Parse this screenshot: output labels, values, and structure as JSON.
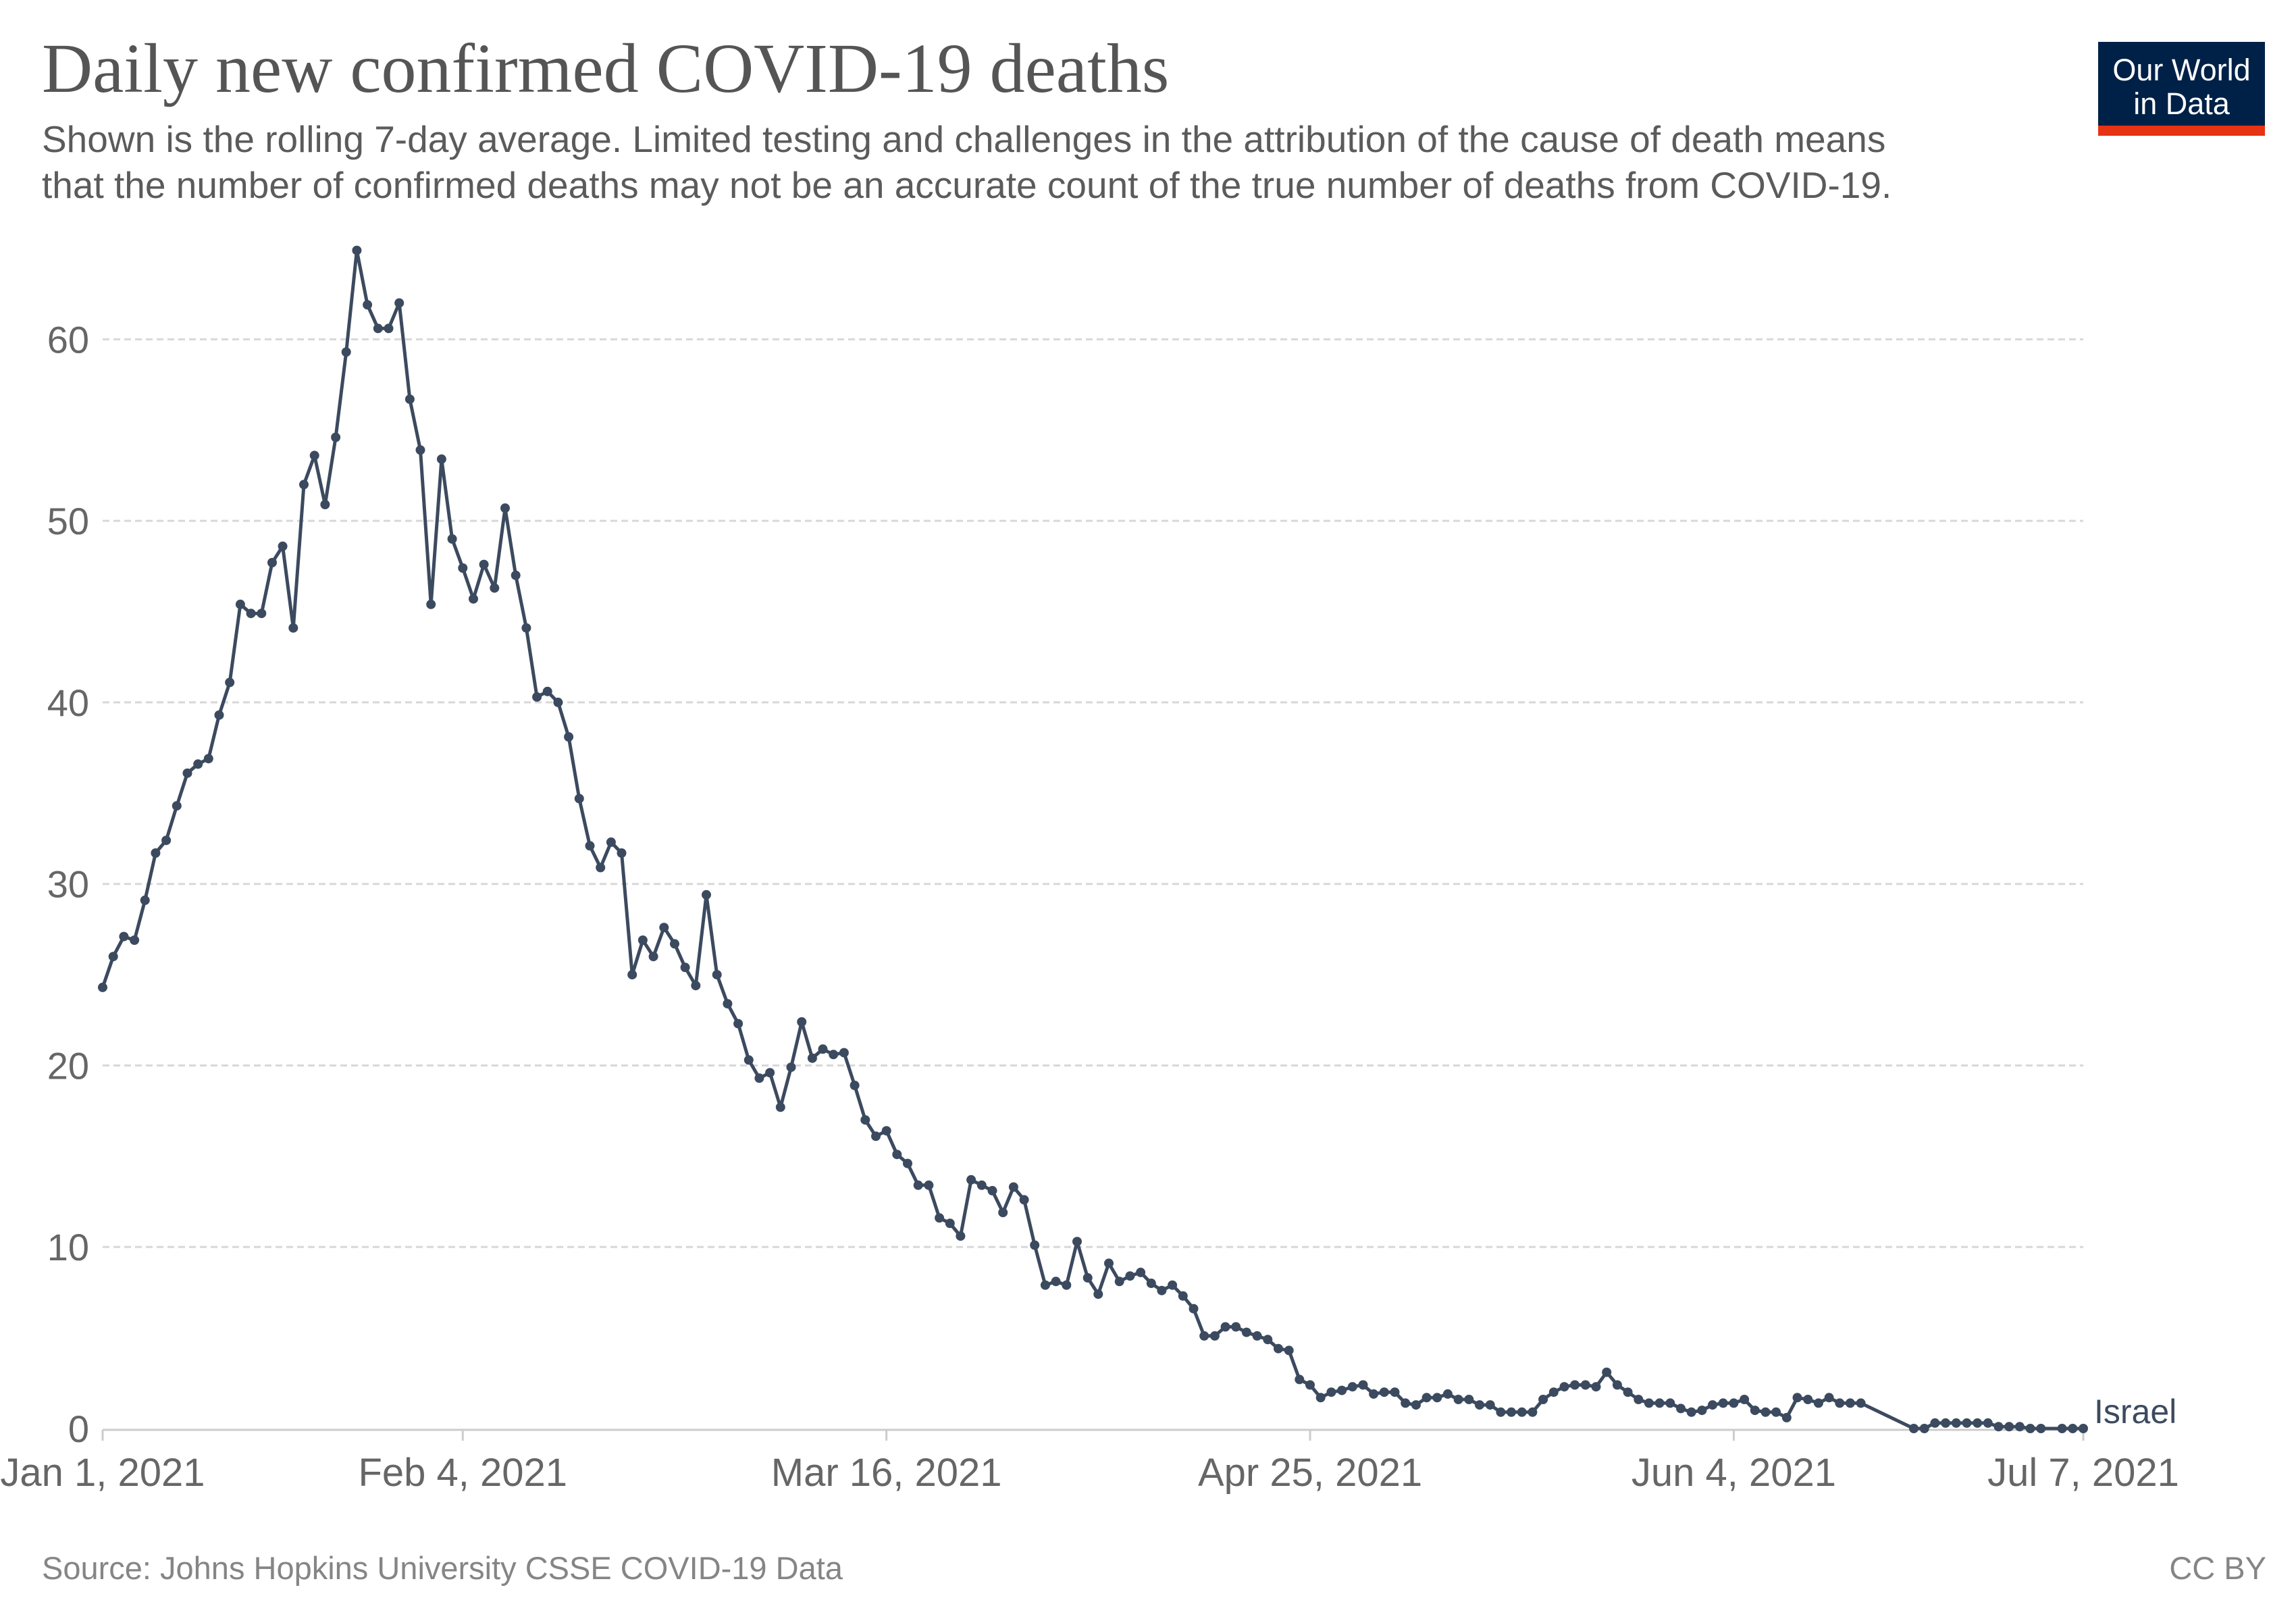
{
  "header": {
    "title": "Daily new confirmed COVID-19 deaths",
    "subtitle_line1": "Shown is the rolling 7-day average. Limited testing and challenges in the attribution of the cause of death means",
    "subtitle_line2": "that the number of confirmed deaths may not be an accurate count of the true number of deaths from COVID-19."
  },
  "logo": {
    "line1": "Our World",
    "line2": "in Data"
  },
  "footer": {
    "source": "Source: Johns Hopkins University CSSE COVID-19 Data",
    "license": "CC BY"
  },
  "colors": {
    "series": "#3c4a5f",
    "grid": "#d8d8d8",
    "axis": "#cccccc",
    "logo_bg": "#002147",
    "logo_bar": "#e63312"
  },
  "chart_data": {
    "type": "line",
    "title": "Daily new confirmed COVID-19 deaths",
    "xlabel": "",
    "ylabel": "",
    "x_start": "2021-01-01",
    "x_end": "2021-07-07",
    "x_ticks": [
      {
        "date": "2021-01-01",
        "label": "Jan 1, 2021"
      },
      {
        "date": "2021-02-04",
        "label": "Feb 4, 2021"
      },
      {
        "date": "2021-03-16",
        "label": "Mar 16, 2021"
      },
      {
        "date": "2021-04-25",
        "label": "Apr 25, 2021"
      },
      {
        "date": "2021-06-04",
        "label": "Jun 4, 2021"
      },
      {
        "date": "2021-07-07",
        "label": "Jul 7, 2021"
      }
    ],
    "ylim": [
      0,
      65
    ],
    "y_ticks": [
      0,
      10,
      20,
      30,
      40,
      50,
      60
    ],
    "grid": "horizontal dashed",
    "series": [
      {
        "name": "Israel",
        "points": [
          [
            "2021-01-01",
            24.3
          ],
          [
            "2021-01-02",
            26.0
          ],
          [
            "2021-01-03",
            27.1
          ],
          [
            "2021-01-04",
            26.9
          ],
          [
            "2021-01-05",
            29.1
          ],
          [
            "2021-01-06",
            31.7
          ],
          [
            "2021-01-07",
            32.4
          ],
          [
            "2021-01-08",
            34.3
          ],
          [
            "2021-01-09",
            36.1
          ],
          [
            "2021-01-10",
            36.6
          ],
          [
            "2021-01-11",
            36.9
          ],
          [
            "2021-01-12",
            39.3
          ],
          [
            "2021-01-13",
            41.1
          ],
          [
            "2021-01-14",
            45.4
          ],
          [
            "2021-01-15",
            44.9
          ],
          [
            "2021-01-16",
            44.9
          ],
          [
            "2021-01-17",
            47.7
          ],
          [
            "2021-01-18",
            48.6
          ],
          [
            "2021-01-19",
            44.1
          ],
          [
            "2021-01-20",
            52.0
          ],
          [
            "2021-01-21",
            53.6
          ],
          [
            "2021-01-22",
            50.9
          ],
          [
            "2021-01-23",
            54.6
          ],
          [
            "2021-01-24",
            59.3
          ],
          [
            "2021-01-25",
            64.9
          ],
          [
            "2021-01-26",
            61.9
          ],
          [
            "2021-01-27",
            60.6
          ],
          [
            "2021-01-28",
            60.6
          ],
          [
            "2021-01-29",
            62.0
          ],
          [
            "2021-01-30",
            56.7
          ],
          [
            "2021-01-31",
            53.9
          ],
          [
            "2021-02-01",
            45.4
          ],
          [
            "2021-02-02",
            53.4
          ],
          [
            "2021-02-03",
            49.0
          ],
          [
            "2021-02-04",
            47.4
          ],
          [
            "2021-02-05",
            45.7
          ],
          [
            "2021-02-06",
            47.6
          ],
          [
            "2021-02-07",
            46.3
          ],
          [
            "2021-02-08",
            50.7
          ],
          [
            "2021-02-09",
            47.0
          ],
          [
            "2021-02-10",
            44.1
          ],
          [
            "2021-02-11",
            40.3
          ],
          [
            "2021-02-12",
            40.6
          ],
          [
            "2021-02-13",
            40.0
          ],
          [
            "2021-02-14",
            38.1
          ],
          [
            "2021-02-15",
            34.7
          ],
          [
            "2021-02-16",
            32.1
          ],
          [
            "2021-02-17",
            30.9
          ],
          [
            "2021-02-18",
            32.3
          ],
          [
            "2021-02-19",
            31.7
          ],
          [
            "2021-02-20",
            25.0
          ],
          [
            "2021-02-21",
            26.9
          ],
          [
            "2021-02-22",
            26.0
          ],
          [
            "2021-02-23",
            27.6
          ],
          [
            "2021-02-24",
            26.7
          ],
          [
            "2021-02-25",
            25.4
          ],
          [
            "2021-02-26",
            24.4
          ],
          [
            "2021-02-27",
            29.4
          ],
          [
            "2021-02-28",
            25.0
          ],
          [
            "2021-03-01",
            23.4
          ],
          [
            "2021-03-02",
            22.3
          ],
          [
            "2021-03-03",
            20.3
          ],
          [
            "2021-03-04",
            19.3
          ],
          [
            "2021-03-05",
            19.6
          ],
          [
            "2021-03-06",
            17.7
          ],
          [
            "2021-03-07",
            19.9
          ],
          [
            "2021-03-08",
            22.4
          ],
          [
            "2021-03-09",
            20.4
          ],
          [
            "2021-03-10",
            20.9
          ],
          [
            "2021-03-11",
            20.6
          ],
          [
            "2021-03-12",
            20.7
          ],
          [
            "2021-03-13",
            18.9
          ],
          [
            "2021-03-14",
            17.0
          ],
          [
            "2021-03-15",
            16.1
          ],
          [
            "2021-03-16",
            16.4
          ],
          [
            "2021-03-17",
            15.1
          ],
          [
            "2021-03-18",
            14.6
          ],
          [
            "2021-03-19",
            13.4
          ],
          [
            "2021-03-20",
            13.4
          ],
          [
            "2021-03-21",
            11.6
          ],
          [
            "2021-03-22",
            11.3
          ],
          [
            "2021-03-23",
            10.6
          ],
          [
            "2021-03-24",
            13.7
          ],
          [
            "2021-03-25",
            13.4
          ],
          [
            "2021-03-26",
            13.1
          ],
          [
            "2021-03-27",
            11.9
          ],
          [
            "2021-03-28",
            13.3
          ],
          [
            "2021-03-29",
            12.6
          ],
          [
            "2021-03-30",
            10.1
          ],
          [
            "2021-03-31",
            7.9
          ],
          [
            "2021-04-01",
            8.1
          ],
          [
            "2021-04-02",
            7.9
          ],
          [
            "2021-04-03",
            10.3
          ],
          [
            "2021-04-04",
            8.3
          ],
          [
            "2021-04-05",
            7.4
          ],
          [
            "2021-04-06",
            9.1
          ],
          [
            "2021-04-07",
            8.1
          ],
          [
            "2021-04-08",
            8.4
          ],
          [
            "2021-04-09",
            8.6
          ],
          [
            "2021-04-10",
            8.0
          ],
          [
            "2021-04-11",
            7.6
          ],
          [
            "2021-04-12",
            7.9
          ],
          [
            "2021-04-13",
            7.3
          ],
          [
            "2021-04-14",
            6.6
          ],
          [
            "2021-04-15",
            5.1
          ],
          [
            "2021-04-16",
            5.1
          ],
          [
            "2021-04-17",
            5.6
          ],
          [
            "2021-04-18",
            5.6
          ],
          [
            "2021-04-19",
            5.3
          ],
          [
            "2021-04-20",
            5.1
          ],
          [
            "2021-04-21",
            4.9
          ],
          [
            "2021-04-22",
            4.4
          ],
          [
            "2021-04-23",
            4.3
          ],
          [
            "2021-04-24",
            2.7
          ],
          [
            "2021-04-25",
            2.4
          ],
          [
            "2021-04-26",
            1.7
          ],
          [
            "2021-04-27",
            2.0
          ],
          [
            "2021-04-28",
            2.1
          ],
          [
            "2021-04-29",
            2.3
          ],
          [
            "2021-04-30",
            2.4
          ],
          [
            "2021-05-01",
            1.9
          ],
          [
            "2021-05-02",
            2.0
          ],
          [
            "2021-05-03",
            2.0
          ],
          [
            "2021-05-04",
            1.4
          ],
          [
            "2021-05-05",
            1.3
          ],
          [
            "2021-05-06",
            1.7
          ],
          [
            "2021-05-07",
            1.7
          ],
          [
            "2021-05-08",
            1.9
          ],
          [
            "2021-05-09",
            1.6
          ],
          [
            "2021-05-10",
            1.6
          ],
          [
            "2021-05-11",
            1.3
          ],
          [
            "2021-05-12",
            1.3
          ],
          [
            "2021-05-13",
            0.9
          ],
          [
            "2021-05-14",
            0.9
          ],
          [
            "2021-05-15",
            0.9
          ],
          [
            "2021-05-16",
            0.9
          ],
          [
            "2021-05-17",
            1.6
          ],
          [
            "2021-05-18",
            2.0
          ],
          [
            "2021-05-19",
            2.3
          ],
          [
            "2021-05-20",
            2.4
          ],
          [
            "2021-05-21",
            2.4
          ],
          [
            "2021-05-22",
            2.3
          ],
          [
            "2021-05-23",
            3.1
          ],
          [
            "2021-05-24",
            2.4
          ],
          [
            "2021-05-25",
            2.0
          ],
          [
            "2021-05-26",
            1.6
          ],
          [
            "2021-05-27",
            1.4
          ],
          [
            "2021-05-28",
            1.4
          ],
          [
            "2021-05-29",
            1.4
          ],
          [
            "2021-05-30",
            1.1
          ],
          [
            "2021-05-31",
            0.9
          ],
          [
            "2021-06-01",
            1.0
          ],
          [
            "2021-06-02",
            1.3
          ],
          [
            "2021-06-03",
            1.4
          ],
          [
            "2021-06-04",
            1.4
          ],
          [
            "2021-06-05",
            1.6
          ],
          [
            "2021-06-06",
            1.0
          ],
          [
            "2021-06-07",
            0.9
          ],
          [
            "2021-06-08",
            0.9
          ],
          [
            "2021-06-09",
            0.6
          ],
          [
            "2021-06-10",
            1.7
          ],
          [
            "2021-06-11",
            1.6
          ],
          [
            "2021-06-12",
            1.4
          ],
          [
            "2021-06-13",
            1.7
          ],
          [
            "2021-06-14",
            1.4
          ],
          [
            "2021-06-15",
            1.4
          ],
          [
            "2021-06-16",
            1.4
          ],
          [
            "2021-06-21",
            0.0
          ],
          [
            "2021-06-22",
            0.0
          ],
          [
            "2021-06-23",
            0.3
          ],
          [
            "2021-06-24",
            0.3
          ],
          [
            "2021-06-25",
            0.3
          ],
          [
            "2021-06-26",
            0.3
          ],
          [
            "2021-06-27",
            0.3
          ],
          [
            "2021-06-28",
            0.3
          ],
          [
            "2021-06-29",
            0.1
          ],
          [
            "2021-06-30",
            0.1
          ],
          [
            "2021-07-01",
            0.1
          ],
          [
            "2021-07-02",
            0.0
          ],
          [
            "2021-07-03",
            0.0
          ],
          [
            "2021-07-05",
            0.0
          ],
          [
            "2021-07-06",
            0.0
          ],
          [
            "2021-07-07",
            0.0
          ]
        ]
      }
    ]
  }
}
